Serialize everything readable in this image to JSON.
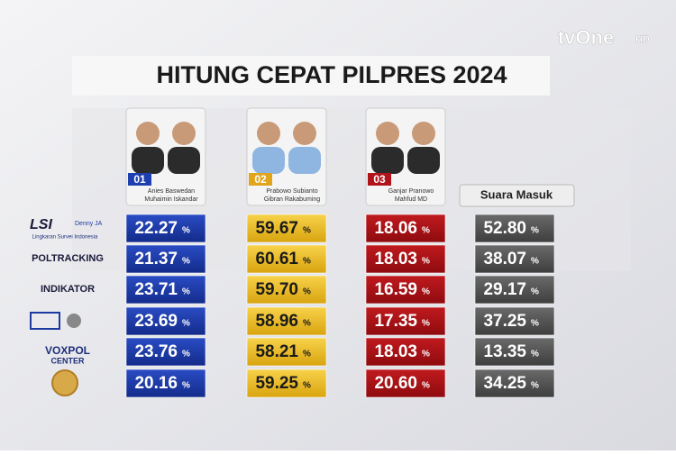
{
  "header": {
    "title": "HITUNG CEPAT PILPRES 2024",
    "channel": "tvOne",
    "channel_badge": "HD"
  },
  "candidates": [
    {
      "number": "01",
      "names": [
        "Anies Baswedan",
        "Muhaimin Iskandar"
      ]
    },
    {
      "number": "02",
      "names": [
        "Prabowo Subianto",
        "Gibran Rakabuming"
      ]
    },
    {
      "number": "03",
      "names": [
        "Ganjar Pranowo",
        "Mahfud MD"
      ]
    }
  ],
  "votes_header": "Suara Masuk",
  "unit": "%",
  "pollsters": [
    {
      "name": "LSI",
      "tag": "Denny JA",
      "subtitle": "Lingkaran Survei Indonesia"
    },
    {
      "name": "POLTRACKING"
    },
    {
      "name": "INDIKATOR"
    },
    {},
    {
      "name": "VOXPOL",
      "subtitle": "CENTER"
    },
    {}
  ],
  "rows": [
    [
      "22.27",
      "59.67",
      "18.06",
      "52.80"
    ],
    [
      "21.37",
      "60.61",
      "18.03",
      "38.07"
    ],
    [
      "23.71",
      "59.70",
      "16.59",
      "29.17"
    ],
    [
      "23.69",
      "58.96",
      "17.35",
      "37.25"
    ],
    [
      "23.76",
      "58.21",
      "18.03",
      "13.35"
    ],
    [
      "20.16",
      "59.25",
      "20.60",
      "34.25"
    ]
  ]
}
